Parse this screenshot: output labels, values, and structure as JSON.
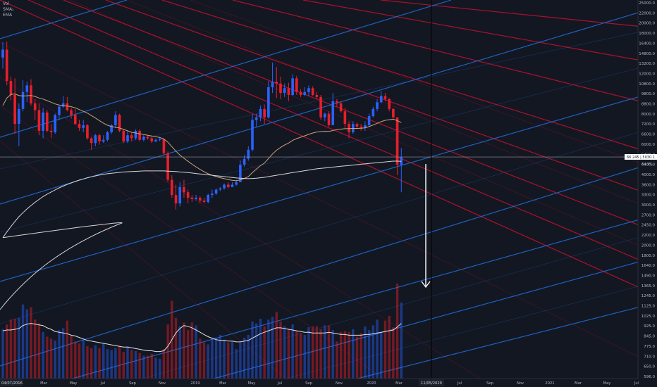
{
  "legend": {
    "items": [
      "Vol",
      "SMA₂",
      "EMA"
    ]
  },
  "price_axis": {
    "ticks": [
      "25000.0",
      "22000.0",
      "20000.0",
      "18000.0",
      "16400.0",
      "14800.0",
      "13200.0",
      "12000.0",
      "10800.0",
      "9800.0",
      "8800.0",
      "8000.0",
      "7200.0",
      "6600.0",
      "6000.0",
      "5400.0",
      "4400.0",
      "4000.0",
      "3600.0",
      "3300.0",
      "3000.0",
      "2700.0",
      "2450.0",
      "2200.0",
      "2000.0",
      "1800.0",
      "1640.0",
      "1490.0",
      "1365.0",
      "1245.0",
      "1125.0",
      "1025.0",
      "925.0",
      "845.0",
      "775.0",
      "710.0",
      "650.0",
      "596.0"
    ],
    "price_label": "66 245 | 5030.1",
    "price_label_sub": "64.9%"
  },
  "time_axis": {
    "start_label": "04/07/2016",
    "cursor_label": "11/05/2020",
    "ticks": [
      "Mar",
      "May",
      "Jul",
      "Sep",
      "Nov",
      "2019",
      "Mar",
      "May",
      "Jul",
      "Sep",
      "Nov",
      "2020",
      "Mar",
      "Jul",
      "Sep",
      "Nov",
      "2021",
      "Mar",
      "May",
      "Jul"
    ]
  },
  "colors": {
    "background": "#131722",
    "up": "#2962ff",
    "down": "#e91e2b",
    "red_line": "#c8102e",
    "blue_line": "#1e6fd9",
    "sma": "#d6d6d6",
    "ema": "#c9a27a",
    "arrow": "#ffffff"
  },
  "chart_data": {
    "type": "candlestick",
    "scale": "log",
    "ylim": [
      596,
      25000
    ],
    "x_start": "2018-01-15",
    "x_interval": "weekly",
    "candles": [
      [
        14500,
        15700,
        13000,
        16900
      ],
      [
        15700,
        11500,
        11000,
        17000
      ],
      [
        11500,
        10000,
        9500,
        12000
      ],
      [
        10000,
        7500,
        6800,
        11800
      ],
      [
        7500,
        8700,
        6000,
        9200
      ],
      [
        8700,
        10300,
        8500,
        11600
      ],
      [
        10300,
        11000,
        9300,
        11400
      ],
      [
        11000,
        9200,
        9000,
        11700
      ],
      [
        9200,
        8600,
        7800,
        9600
      ],
      [
        8600,
        7000,
        6700,
        9200
      ],
      [
        7000,
        8400,
        6500,
        8800
      ],
      [
        8400,
        7000,
        6900,
        8600
      ],
      [
        7000,
        6900,
        6500,
        7500
      ],
      [
        6900,
        8200,
        6800,
        8300
      ],
      [
        8200,
        8900,
        7800,
        9000
      ],
      [
        8900,
        9200,
        8800,
        9900
      ],
      [
        9200,
        8600,
        8500,
        9800
      ],
      [
        8600,
        8200,
        7900,
        8800
      ],
      [
        8200,
        7500,
        7400,
        8700
      ],
      [
        7500,
        7200,
        7000,
        7800
      ],
      [
        7200,
        7400,
        6900,
        7800
      ],
      [
        7400,
        6500,
        6400,
        7500
      ],
      [
        6500,
        6200,
        5800,
        6600
      ],
      [
        6200,
        6700,
        6000,
        6800
      ],
      [
        6700,
        6300,
        6100,
        6800
      ],
      [
        6300,
        6400,
        6200,
        6700
      ],
      [
        6400,
        6900,
        6300,
        7000
      ],
      [
        6900,
        7400,
        6800,
        7500
      ],
      [
        7400,
        8200,
        7200,
        8500
      ],
      [
        8200,
        7000,
        6900,
        8300
      ],
      [
        7000,
        6300,
        6200,
        7100
      ],
      [
        6300,
        6700,
        6200,
        7000
      ],
      [
        6700,
        6500,
        6300,
        6900
      ],
      [
        6500,
        7000,
        6400,
        7100
      ],
      [
        7000,
        6400,
        6300,
        7100
      ],
      [
        6400,
        6600,
        6300,
        6700
      ],
      [
        6600,
        6500,
        6400,
        6700
      ],
      [
        6500,
        6300,
        6200,
        6600
      ],
      [
        6300,
        6400,
        6250,
        6500
      ],
      [
        6400,
        6450,
        6300,
        6550
      ],
      [
        6450,
        5600,
        5500,
        6500
      ],
      [
        5600,
        4300,
        4200,
        5700
      ],
      [
        4300,
        3700,
        3600,
        4500
      ],
      [
        3700,
        3400,
        3200,
        4100
      ],
      [
        3400,
        4000,
        3300,
        4200
      ],
      [
        4000,
        3800,
        3600,
        4300
      ],
      [
        3800,
        3600,
        3400,
        3900
      ],
      [
        3600,
        3550,
        3450,
        3700
      ],
      [
        3550,
        3600,
        3500,
        3700
      ],
      [
        3600,
        3500,
        3400,
        3650
      ],
      [
        3500,
        3450,
        3400,
        3600
      ],
      [
        3450,
        3700,
        3400,
        3750
      ],
      [
        3700,
        3750,
        3600,
        3900
      ],
      [
        3750,
        3900,
        3700,
        3950
      ],
      [
        3900,
        3950,
        3850,
        4000
      ],
      [
        3950,
        4100,
        3900,
        4150
      ],
      [
        4100,
        4000,
        3950,
        4200
      ],
      [
        4000,
        4100,
        4000,
        4200
      ],
      [
        4100,
        4200,
        4050,
        4300
      ],
      [
        4200,
        5000,
        4200,
        5200
      ],
      [
        5000,
        5300,
        4900,
        5500
      ],
      [
        5300,
        5800,
        5200,
        6000
      ],
      [
        5800,
        7800,
        5700,
        8300
      ],
      [
        7800,
        8000,
        7300,
        8300
      ],
      [
        8000,
        8700,
        7700,
        9000
      ],
      [
        8700,
        8000,
        7500,
        9100
      ],
      [
        8000,
        10800,
        7900,
        11500
      ],
      [
        10800,
        11400,
        10200,
        13800
      ],
      [
        11400,
        11200,
        9700,
        13200
      ],
      [
        11200,
        10200,
        9600,
        12000
      ],
      [
        10200,
        10700,
        9800,
        11200
      ],
      [
        10700,
        10000,
        9400,
        11300
      ],
      [
        10000,
        11800,
        9900,
        12300
      ],
      [
        11800,
        10300,
        10000,
        12100
      ],
      [
        10300,
        10000,
        9800,
        10600
      ],
      [
        10000,
        10300,
        9900,
        10800
      ],
      [
        10300,
        10700,
        9900,
        11000
      ],
      [
        10700,
        10000,
        9900,
        10900
      ],
      [
        10000,
        9800,
        9600,
        10300
      ],
      [
        9800,
        8000,
        7800,
        10000
      ],
      [
        8000,
        8300,
        7700,
        8400
      ],
      [
        8300,
        7400,
        7300,
        8500
      ],
      [
        7400,
        9400,
        7400,
        10200
      ],
      [
        9400,
        9200,
        8900,
        9600
      ],
      [
        9200,
        8500,
        8400,
        9400
      ],
      [
        8500,
        7500,
        7200,
        8800
      ],
      [
        7500,
        6900,
        6500,
        7700
      ],
      [
        6900,
        7500,
        6800,
        7700
      ],
      [
        7500,
        7300,
        7100,
        7600
      ],
      [
        7300,
        7200,
        7000,
        7500
      ],
      [
        7200,
        7400,
        7000,
        7700
      ],
      [
        7400,
        8100,
        7300,
        8300
      ],
      [
        8100,
        8700,
        8000,
        8900
      ],
      [
        8700,
        9300,
        8500,
        9600
      ],
      [
        9300,
        9900,
        9200,
        10400
      ],
      [
        9900,
        9600,
        9400,
        10200
      ],
      [
        9600,
        8700,
        8500,
        9700
      ],
      [
        8700,
        8000,
        7900,
        8800
      ],
      [
        8000,
        5000,
        4500,
        8000
      ],
      [
        5000,
        5400,
        3800,
        5900
      ]
    ],
    "volume": [
      0.52,
      0.57,
      0.62,
      0.63,
      0.64,
      0.78,
      0.73,
      0.75,
      0.62,
      0.58,
      0.49,
      0.44,
      0.42,
      0.4,
      0.51,
      0.53,
      0.61,
      0.45,
      0.39,
      0.37,
      0.42,
      0.34,
      0.32,
      0.35,
      0.32,
      0.37,
      0.31,
      0.3,
      0.32,
      0.34,
      0.28,
      0.34,
      0.3,
      0.29,
      0.27,
      0.24,
      0.24,
      0.26,
      0.22,
      0.21,
      0.31,
      0.57,
      0.82,
      0.64,
      0.55,
      0.59,
      0.51,
      0.59,
      0.56,
      0.42,
      0.38,
      0.36,
      0.42,
      0.43,
      0.46,
      0.41,
      0.38,
      0.39,
      0.31,
      0.38,
      0.43,
      0.46,
      0.6,
      0.58,
      0.63,
      0.55,
      0.62,
      0.65,
      0.7,
      0.6,
      0.55,
      0.52,
      0.57,
      0.5,
      0.48,
      0.46,
      0.54,
      0.55,
      0.55,
      0.52,
      0.56,
      0.56,
      0.51,
      0.39,
      0.49,
      0.5,
      0.49,
      0.52,
      0.44,
      0.48,
      0.55,
      0.51,
      0.56,
      0.62,
      0.49,
      0.61,
      0.66,
      0.54,
      1.0,
      0.8
    ],
    "volume_sma": [
      0.55,
      0.56,
      0.56,
      0.57,
      0.58,
      0.62,
      0.64,
      0.65,
      0.64,
      0.63,
      0.62,
      0.59,
      0.57,
      0.54,
      0.53,
      0.52,
      0.51,
      0.49,
      0.48,
      0.46,
      0.44,
      0.42,
      0.41,
      0.4,
      0.39,
      0.38,
      0.37,
      0.36,
      0.35,
      0.34,
      0.33,
      0.33,
      0.32,
      0.31,
      0.3,
      0.29,
      0.28,
      0.28,
      0.27,
      0.27,
      0.28,
      0.34,
      0.43,
      0.52,
      0.58,
      0.62,
      0.61,
      0.59,
      0.56,
      0.53,
      0.5,
      0.47,
      0.45,
      0.43,
      0.42,
      0.42,
      0.41,
      0.41,
      0.4,
      0.4,
      0.41,
      0.42,
      0.45,
      0.48,
      0.51,
      0.53,
      0.55,
      0.57,
      0.59,
      0.59,
      0.58,
      0.57,
      0.56,
      0.55,
      0.54,
      0.53,
      0.53,
      0.52,
      0.52,
      0.52,
      0.52,
      0.53,
      0.52,
      0.51,
      0.5,
      0.5,
      0.49,
      0.49,
      0.49,
      0.49,
      0.5,
      0.5,
      0.51,
      0.52,
      0.53,
      0.54,
      0.55,
      0.56,
      0.6,
      0.65
    ],
    "ema_20": [
      9000,
      9700,
      10050,
      10100,
      9950,
      9900,
      9920,
      9950,
      9850,
      9700,
      9600,
      9450,
      9300,
      9150,
      9050,
      8980,
      8950,
      8900,
      8800,
      8650,
      8500,
      8350,
      8150,
      7950,
      7750,
      7550,
      7400,
      7300,
      7250,
      7200,
      7100,
      7000,
      6900,
      6850,
      6800,
      6750,
      6700,
      6650,
      6600,
      6550,
      6450,
      6250,
      5980,
      5720,
      5500,
      5330,
      5170,
      5020,
      4890,
      4770,
      4660,
      4570,
      4500,
      4440,
      4390,
      4350,
      4310,
      4280,
      4260,
      4300,
      4360,
      4440,
      4620,
      4780,
      4950,
      5080,
      5320,
      5560,
      5770,
      5930,
      6080,
      6200,
      6370,
      6480,
      6570,
      6660,
      6760,
      6850,
      6920,
      6950,
      6970,
      6960,
      7020,
      7080,
      7120,
      7150,
      7160,
      7170,
      7170,
      7180,
      7210,
      7300,
      7420,
      7540,
      7670,
      7770,
      7820,
      7860,
      7750,
      7600
    ],
    "sma_200": [
      2420,
      2560,
      2700,
      2840,
      2980,
      3100,
      3220,
      3330,
      3440,
      3540,
      3640,
      3730,
      3810,
      3890,
      3970,
      4040,
      4110,
      4170,
      4230,
      4290,
      4340,
      4390,
      4430,
      4470,
      4510,
      4540,
      4570,
      4590,
      4610,
      4630,
      4650,
      4660,
      4670,
      4680,
      4690,
      4700,
      4700,
      4700,
      4700,
      4700,
      4700,
      4690,
      4680,
      4670,
      4650,
      4640,
      4620,
      4600,
      4580,
      4560,
      4540,
      4520,
      4500,
      4480,
      4460,
      4440,
      4420,
      4400,
      4380,
      4370,
      4360,
      4350,
      4360,
      4370,
      4390,
      4410,
      4440,
      4470,
      4500,
      4530,
      4560,
      4590,
      4620,
      4650,
      4680,
      4710,
      4740,
      4770,
      4800,
      4820,
      4840,
      4860,
      4880,
      4900,
      4920,
      4940,
      4960,
      4980,
      5000,
      5020,
      5040,
      5060,
      5080,
      5100,
      5120,
      5140,
      5160,
      5180,
      5180,
      5170
    ],
    "forecast_arrow": {
      "from_price": 5030,
      "to_price": 1480,
      "date": "2020-05-11"
    }
  }
}
